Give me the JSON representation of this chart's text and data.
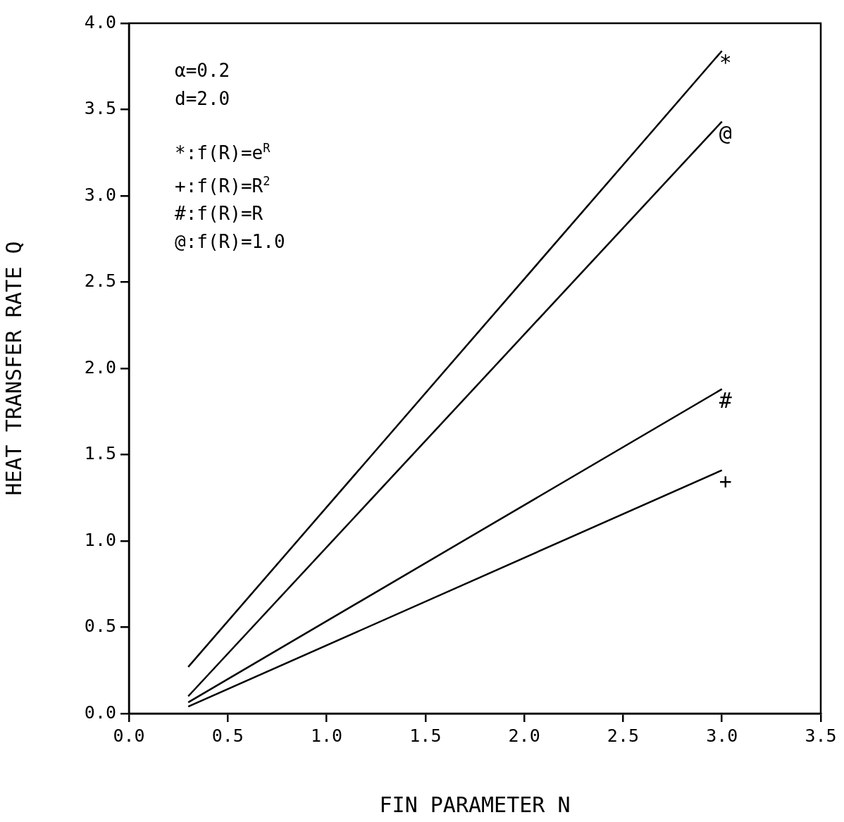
{
  "chart_data": {
    "type": "line",
    "xlabel": "FIN PARAMETER N",
    "ylabel": "HEAT TRANSFER RATE Q",
    "xlim": [
      0,
      3.5
    ],
    "xticks": [
      {
        "value": 0,
        "label": "0.0"
      },
      {
        "value": 0.5,
        "label": "0.5"
      },
      {
        "value": 1,
        "label": "1.0"
      },
      {
        "value": 1.5,
        "label": "1.5"
      },
      {
        "value": 2,
        "label": "2.0"
      },
      {
        "value": 2.5,
        "label": "2.5"
      },
      {
        "value": 3,
        "label": "3.0"
      },
      {
        "value": 3.5,
        "label": "3.5"
      }
    ],
    "ylim": [
      0,
      4
    ],
    "yticks": [
      {
        "value": 0,
        "label": "0.0"
      },
      {
        "value": 0.5,
        "label": "0.5"
      },
      {
        "value": 1,
        "label": "1.0"
      },
      {
        "value": 1.5,
        "label": "1.5"
      },
      {
        "value": 2,
        "label": "2.0"
      },
      {
        "value": 2.5,
        "label": "2.5"
      },
      {
        "value": 3,
        "label": "3.0"
      },
      {
        "value": 3.5,
        "label": "3.5"
      },
      {
        "value": 4,
        "label": "4.0"
      }
    ],
    "x": [
      0.3,
      3.0
    ],
    "grid": false,
    "legend": false,
    "marker": "none",
    "line_style": "solid",
    "series": [
      {
        "color": "#000000",
        "values": [
          0.27,
          3.84
        ]
      },
      {
        "color": "#000000",
        "values": [
          0.1,
          3.43
        ]
      },
      {
        "color": "#000000",
        "values": [
          0.065,
          1.88
        ]
      },
      {
        "color": "#000000",
        "values": [
          0.04,
          1.41
        ]
      }
    ],
    "annotations": [
      "α=0.2",
      "d=2.0",
      "*:f(R)=e$^{R}$",
      "+:f(R)=R$^{2}$",
      "#:f(R)=R",
      "@:f(R)=1.0",
      "*",
      "@",
      "#",
      "+"
    ]
  }
}
